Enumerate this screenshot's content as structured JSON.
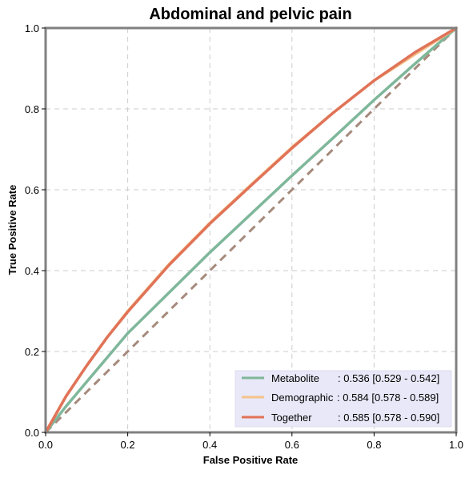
{
  "chart_data": {
    "type": "line",
    "title": "Abdominal and pelvic pain",
    "xlabel": "False Positive Rate",
    "ylabel": "True Positive Rate",
    "xlim": [
      0,
      1
    ],
    "ylim": [
      0,
      1
    ],
    "xticks": [
      "0.0",
      "0.2",
      "0.4",
      "0.6",
      "0.8",
      "1.0"
    ],
    "yticks": [
      "0.0",
      "0.2",
      "0.4",
      "0.6",
      "0.8",
      "1.0"
    ],
    "grid": true,
    "legend_position": "bottom-right",
    "x": [
      0,
      0.05,
      0.1,
      0.15,
      0.2,
      0.3,
      0.4,
      0.5,
      0.6,
      0.7,
      0.8,
      0.9,
      1.0
    ],
    "series": [
      {
        "name": "Metabolite",
        "legend_label": "Metabolite",
        "legend_value": ": 0.536 [0.529 - 0.542]",
        "color": "#7fb79a",
        "values": [
          0,
          0.065,
          0.125,
          0.185,
          0.245,
          0.345,
          0.445,
          0.54,
          0.635,
          0.728,
          0.822,
          0.912,
          1.0
        ]
      },
      {
        "name": "Demographic",
        "legend_label": "Demographic",
        "legend_value": ": 0.584 [0.578 - 0.589]",
        "color": "#f5c38a",
        "values": [
          0,
          0.09,
          0.165,
          0.235,
          0.3,
          0.415,
          0.518,
          0.612,
          0.705,
          0.79,
          0.87,
          0.935,
          1.0
        ]
      },
      {
        "name": "Together",
        "legend_label": "Together",
        "legend_value": ": 0.585 [0.578 - 0.590]",
        "color": "#e07358",
        "values": [
          0,
          0.09,
          0.165,
          0.235,
          0.298,
          0.413,
          0.516,
          0.61,
          0.703,
          0.79,
          0.87,
          0.94,
          1.0
        ]
      }
    ],
    "reference_line": {
      "x": [
        0,
        1
      ],
      "y": [
        0,
        1
      ],
      "color": "#a68a7c",
      "style": "dashed"
    }
  }
}
